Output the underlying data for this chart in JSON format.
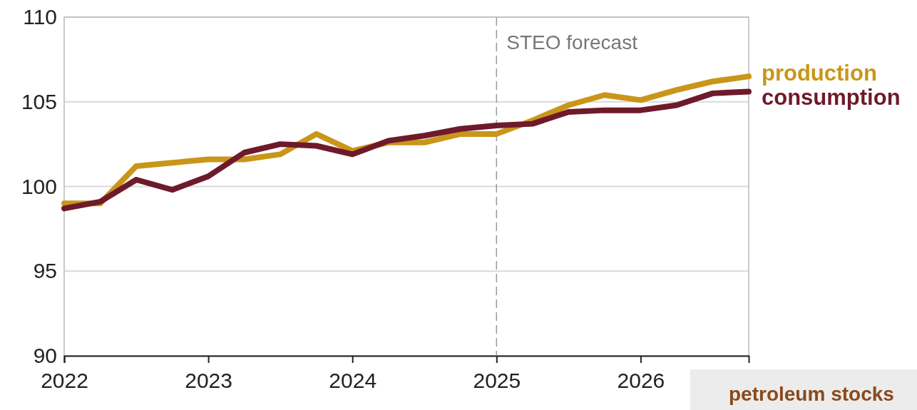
{
  "chart_data": {
    "type": "line",
    "x": [
      2022,
      2022.25,
      2022.5,
      2022.75,
      2023,
      2023.25,
      2023.5,
      2023.75,
      2024,
      2024.25,
      2024.5,
      2024.75,
      2025,
      2025.25,
      2025.5,
      2025.75,
      2026,
      2026.25,
      2026.5,
      2026.75
    ],
    "series": [
      {
        "name": "production",
        "color": "#c9961a",
        "values": [
          99.0,
          99.0,
          101.2,
          101.4,
          101.6,
          101.6,
          101.9,
          103.1,
          102.1,
          102.6,
          102.6,
          103.1,
          103.1,
          103.9,
          104.8,
          105.4,
          105.1,
          105.7,
          106.2,
          106.5
        ]
      },
      {
        "name": "consumption",
        "color": "#6e1a2a",
        "values": [
          98.7,
          99.1,
          100.4,
          99.8,
          100.6,
          102.0,
          102.5,
          102.4,
          101.9,
          102.7,
          103.0,
          103.4,
          103.6,
          103.7,
          104.4,
          104.5,
          104.5,
          104.8,
          105.5,
          105.6
        ]
      }
    ],
    "xlim": [
      2022,
      2026.75
    ],
    "xticks": [
      2022,
      2023,
      2024,
      2025,
      2026
    ],
    "ylim": [
      90,
      110
    ],
    "yticks": [
      90,
      95,
      100,
      105,
      110
    ],
    "grid": "y",
    "line_style": "solid",
    "marker": "none",
    "ref_lines": [
      {
        "axis": "x",
        "value": 2025,
        "label": "STEO forecast",
        "color": "#999999",
        "line_style": "dashed"
      }
    ],
    "annotations": [
      "petroleum stocks"
    ]
  }
}
